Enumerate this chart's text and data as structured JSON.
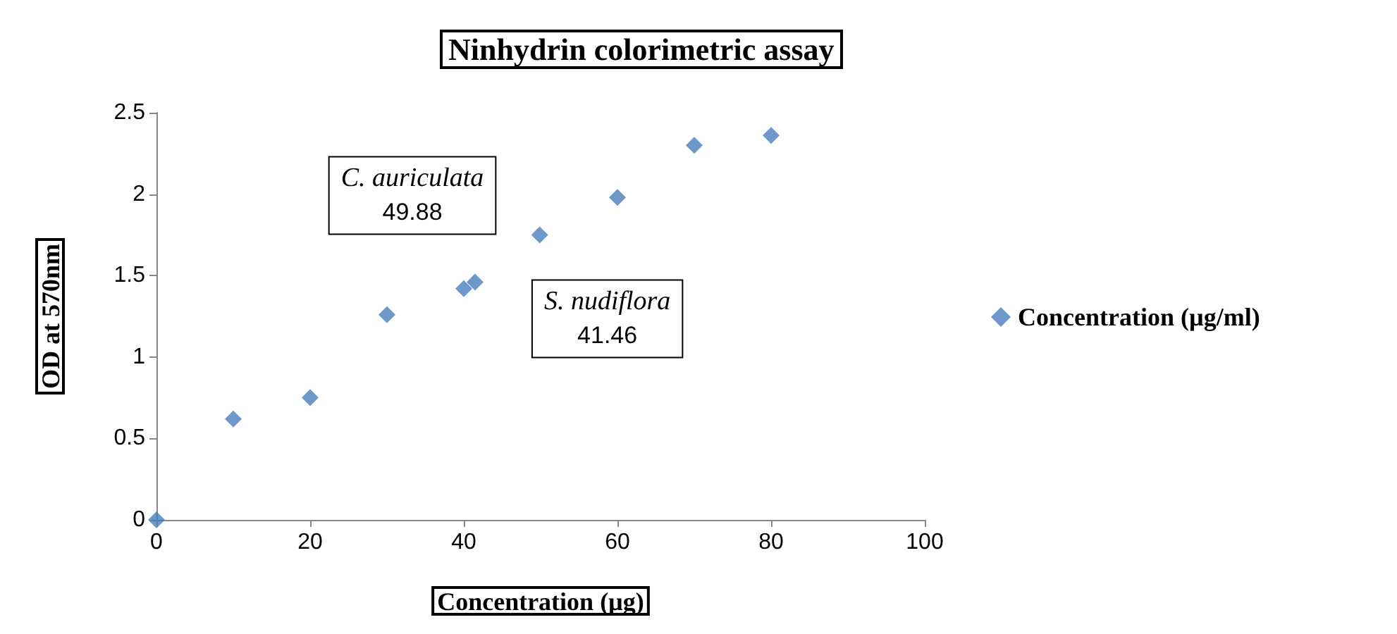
{
  "chart_data": {
    "type": "scatter",
    "title": "Ninhydrin colorimetric assay",
    "xlabel": "Concentration (µg)",
    "ylabel": "OD at 570nm",
    "x": [
      0,
      10,
      20,
      30,
      40,
      41.46,
      49.88,
      60,
      70,
      80
    ],
    "series": [
      {
        "name": "Concentration (µg/ml)",
        "color": "#4a7ebb",
        "values": [
          0,
          0.62,
          0.75,
          1.26,
          1.42,
          1.46,
          1.75,
          1.98,
          2.3,
          2.36
        ]
      }
    ],
    "xlim": [
      0,
      100
    ],
    "xticks": [
      0,
      20,
      40,
      60,
      80,
      100
    ],
    "ylim": [
      0,
      2.5
    ],
    "yticks": [
      0,
      0.5,
      1,
      1.5,
      2,
      2.5
    ],
    "grid": false,
    "legend": "right",
    "marker": "diamond",
    "annotations": [
      {
        "text": "C. auriculata\n49.88",
        "x": 49.88,
        "y": 1.75
      },
      {
        "text": "S. nudiflora\n41.46",
        "x": 41.46,
        "y": 1.46
      }
    ]
  }
}
